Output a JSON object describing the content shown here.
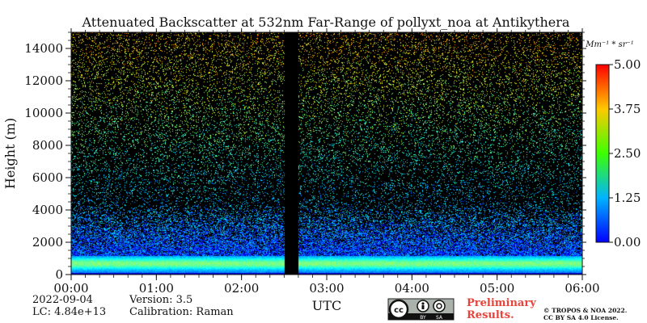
{
  "chart_data": {
    "type": "heatmap",
    "title": "Attenuated Backscatter at 532nm Far-Range of pollyxt_noa at Antikythera",
    "xlabel": "UTC",
    "ylabel": "Height (m)",
    "x_ticks": [
      "00:00",
      "01:00",
      "02:00",
      "03:00",
      "04:00",
      "05:00",
      "06:00"
    ],
    "x_range": [
      "00:00",
      "06:00"
    ],
    "y_ticks": [
      0,
      2000,
      4000,
      6000,
      8000,
      10000,
      12000,
      14000
    ],
    "ylim": [
      0,
      15000
    ],
    "colorbar": {
      "label": "Mm⁻¹ * sr⁻¹",
      "ticks": [
        "0.00",
        "1.25",
        "2.50",
        "3.75",
        "5.00"
      ],
      "range": [
        0,
        5
      ],
      "colormap": "jet"
    },
    "no_data_gaps": [
      [
        "02:30",
        "02:40"
      ]
    ],
    "background_color": "#000000",
    "features": [
      {
        "description": "dense backscatter layer",
        "height_range_m": [
          0,
          1200
        ],
        "value": "about 2.0–2.5"
      },
      {
        "description": "aerosol / noise layer",
        "height_range_m": [
          1200,
          4000
        ],
        "value": "about 0.5–1.5"
      }
    ]
  },
  "footer": {
    "date": "2022-09-04",
    "lc": "LC: 4.84e+13",
    "version": "Version: 3.5",
    "calibration": "Calibration: Raman",
    "preliminary_line1": "Preliminary",
    "preliminary_line2": "Results.",
    "copyright_line1": "© TROPOS & NOA 2022.",
    "copyright_line2": "CC BY SA 4.0 License.",
    "cc_badge": [
      "cc",
      "BY",
      "SA"
    ]
  }
}
